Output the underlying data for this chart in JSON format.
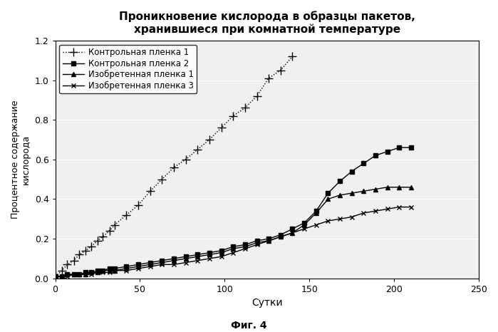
{
  "title": "Проникновение кислорода в образцы пакетов,\nхранившиеся при комнатной температуре",
  "xlabel": "Сутки",
  "ylabel": "Процентное содержание\nкислорода",
  "caption": "Фиг. 4",
  "xlim": [
    0,
    250
  ],
  "ylim": [
    0,
    1.2
  ],
  "xticks": [
    0,
    50,
    100,
    150,
    200,
    250
  ],
  "yticks": [
    0,
    0.2,
    0.4,
    0.6,
    0.8,
    1.0,
    1.2
  ],
  "series": [
    {
      "label": "Контрольная пленка 1",
      "x": [
        0,
        4,
        7,
        11,
        14,
        18,
        21,
        25,
        28,
        32,
        35,
        42,
        49,
        56,
        63,
        70,
        77,
        84,
        91,
        98,
        105,
        112,
        119,
        126,
        133,
        140
      ],
      "y": [
        0.01,
        0.04,
        0.07,
        0.09,
        0.12,
        0.14,
        0.16,
        0.19,
        0.21,
        0.24,
        0.27,
        0.32,
        0.37,
        0.44,
        0.5,
        0.56,
        0.6,
        0.65,
        0.7,
        0.76,
        0.82,
        0.86,
        0.92,
        1.01,
        1.05,
        1.12
      ],
      "style": "dotted",
      "marker": "+",
      "color": "#000000",
      "linewidth": 1.0,
      "markersize": 8
    },
    {
      "label": "Контрольная пленка 2",
      "x": [
        0,
        4,
        7,
        11,
        14,
        18,
        21,
        25,
        28,
        32,
        35,
        42,
        49,
        56,
        63,
        70,
        77,
        84,
        91,
        98,
        105,
        112,
        119,
        126,
        133,
        140,
        147,
        154,
        161,
        168,
        175,
        182,
        189,
        196,
        203,
        210
      ],
      "y": [
        0.01,
        0.01,
        0.02,
        0.02,
        0.02,
        0.03,
        0.03,
        0.04,
        0.04,
        0.05,
        0.05,
        0.06,
        0.07,
        0.08,
        0.09,
        0.1,
        0.11,
        0.12,
        0.13,
        0.14,
        0.16,
        0.17,
        0.19,
        0.2,
        0.22,
        0.25,
        0.28,
        0.34,
        0.43,
        0.49,
        0.54,
        0.58,
        0.62,
        0.64,
        0.66,
        0.66
      ],
      "style": "-",
      "marker": "s",
      "color": "#000000",
      "linewidth": 1.0,
      "markersize": 5
    },
    {
      "label": "Изобретенная пленка 1",
      "x": [
        0,
        4,
        7,
        11,
        14,
        18,
        21,
        25,
        28,
        32,
        35,
        42,
        49,
        56,
        63,
        70,
        77,
        84,
        91,
        98,
        105,
        112,
        119,
        126,
        133,
        140,
        147,
        154,
        161,
        168,
        175,
        182,
        189,
        196,
        203,
        210
      ],
      "y": [
        0.01,
        0.01,
        0.02,
        0.02,
        0.02,
        0.02,
        0.03,
        0.03,
        0.04,
        0.04,
        0.04,
        0.05,
        0.06,
        0.07,
        0.08,
        0.09,
        0.1,
        0.11,
        0.12,
        0.13,
        0.15,
        0.16,
        0.18,
        0.19,
        0.21,
        0.23,
        0.27,
        0.33,
        0.4,
        0.42,
        0.43,
        0.44,
        0.45,
        0.46,
        0.46,
        0.46
      ],
      "style": "-",
      "marker": "^",
      "color": "#000000",
      "linewidth": 1.0,
      "markersize": 5
    },
    {
      "label": "Изобретенная пленка 3",
      "x": [
        0,
        4,
        7,
        11,
        14,
        18,
        21,
        25,
        28,
        32,
        35,
        42,
        49,
        56,
        63,
        70,
        77,
        84,
        91,
        98,
        105,
        112,
        119,
        126,
        133,
        140,
        147,
        154,
        161,
        168,
        175,
        182,
        189,
        196,
        203,
        210
      ],
      "y": [
        0.01,
        0.01,
        0.01,
        0.02,
        0.02,
        0.02,
        0.02,
        0.03,
        0.03,
        0.03,
        0.04,
        0.04,
        0.05,
        0.06,
        0.07,
        0.07,
        0.08,
        0.09,
        0.1,
        0.11,
        0.13,
        0.15,
        0.17,
        0.19,
        0.21,
        0.23,
        0.25,
        0.27,
        0.29,
        0.3,
        0.31,
        0.33,
        0.34,
        0.35,
        0.36,
        0.36
      ],
      "style": "-",
      "marker": "x",
      "color": "#000000",
      "linewidth": 1.0,
      "markersize": 5
    }
  ],
  "background_color": "#f0f0f0",
  "grid_color": "#ffffff",
  "legend_loc": "upper left",
  "legend_fontsize": 8.5
}
